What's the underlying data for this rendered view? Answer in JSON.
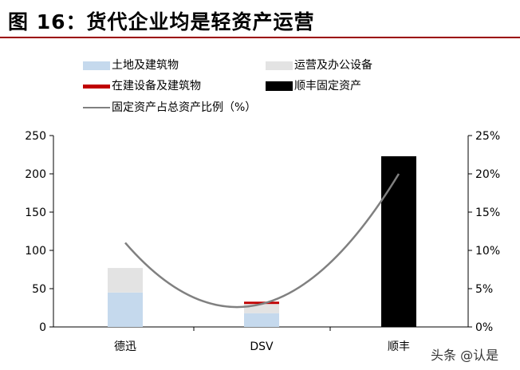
{
  "title": "图 16：货代企业均是轻资产运营",
  "watermark": "头条 @认是",
  "colors": {
    "land_building": "#c5d9ed",
    "operating_office": "#e3e3e3",
    "construction": "#c00000",
    "sf_fixed": "#000000",
    "ratio_line": "#808080",
    "title_rule": "#9b0000"
  },
  "chart_data": {
    "type": "bar",
    "stacked": true,
    "categories": [
      "德迅",
      "DSV",
      "顺丰"
    ],
    "series": [
      {
        "name": "土地及建筑物",
        "values": [
          45,
          18,
          0
        ]
      },
      {
        "name": "运营及办公设备",
        "values": [
          32,
          12,
          0
        ]
      },
      {
        "name": "在建设备及建筑物",
        "values": [
          0,
          3,
          0
        ]
      },
      {
        "name": "顺丰固定资产",
        "values": [
          0,
          0,
          223
        ]
      }
    ],
    "line_series": {
      "name": "固定资产占总资产比例（%）",
      "values": [
        11,
        3,
        20
      ],
      "axis": "right"
    },
    "ylim": [
      0,
      250
    ],
    "yticks": [
      "0",
      "50",
      "100",
      "150",
      "200",
      "250"
    ],
    "y2lim": [
      0,
      25
    ],
    "y2ticks": [
      "0%",
      "5%",
      "10%",
      "15%",
      "20%",
      "25%"
    ],
    "legend_position": "top",
    "grid": false
  }
}
